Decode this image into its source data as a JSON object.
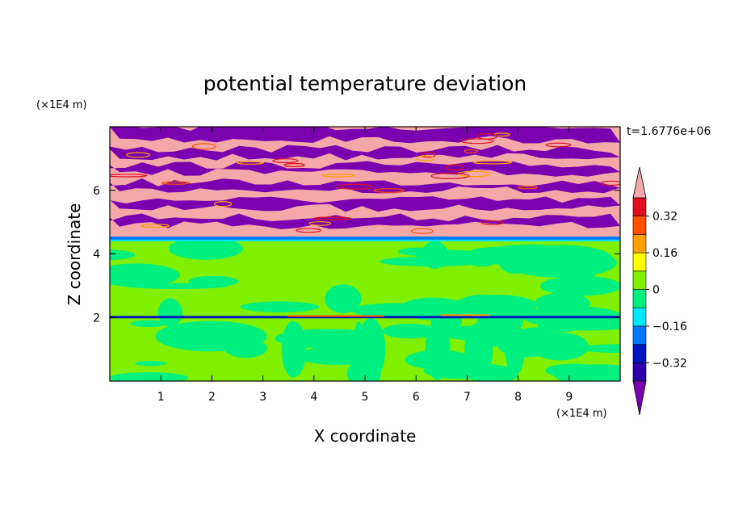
{
  "chart_data": {
    "type": "heatmap",
    "title": "potential temperature deviation",
    "xlabel": "X coordinate",
    "ylabel": "Z coordinate",
    "x_unit": "(×1E4 m)",
    "y_unit": "(×1E4 m)",
    "time_label": "t=1.6776e+06",
    "xlim": [
      0,
      10
    ],
    "ylim": [
      0,
      8
    ],
    "x_ticks": [
      1,
      2,
      3,
      4,
      5,
      6,
      7,
      8,
      9
    ],
    "y_ticks": [
      2,
      4,
      6
    ],
    "colorbar": {
      "levels": [
        -0.4,
        -0.32,
        -0.24,
        -0.16,
        -0.08,
        0,
        0.08,
        0.16,
        0.24,
        0.32,
        0.4
      ],
      "labels": [
        "0.32",
        "0.16",
        "0",
        "−0.16",
        "−0.32"
      ],
      "label_values": [
        0.32,
        0.16,
        0,
        -0.16,
        -0.32
      ],
      "colors": [
        "#7b00b0",
        "#2b00a8",
        "#0014c0",
        "#0078ff",
        "#00e8ff",
        "#00f080",
        "#80f000",
        "#ffff00",
        "#ffa000",
        "#ff5000",
        "#e01020",
        "#f4a8a8"
      ]
    },
    "layers": [
      {
        "z_range": [
          0,
          2.0
        ],
        "field": "near zero, mixed green (0 to 0.08) and teal (-0.08 to 0)"
      },
      {
        "z_range": [
          2.0,
          2.05
        ],
        "field": "thin negative band (blue)"
      },
      {
        "z_range": [
          2.05,
          4.4
        ],
        "field": "near zero, mixed green and teal"
      },
      {
        "z_range": [
          4.4,
          4.55
        ],
        "field": "negative band (blue/cyan)"
      },
      {
        "z_range": [
          4.55,
          8.0
        ],
        "field": "alternating layers of strongly positive (pink) and strongly negative (purple)"
      }
    ]
  }
}
